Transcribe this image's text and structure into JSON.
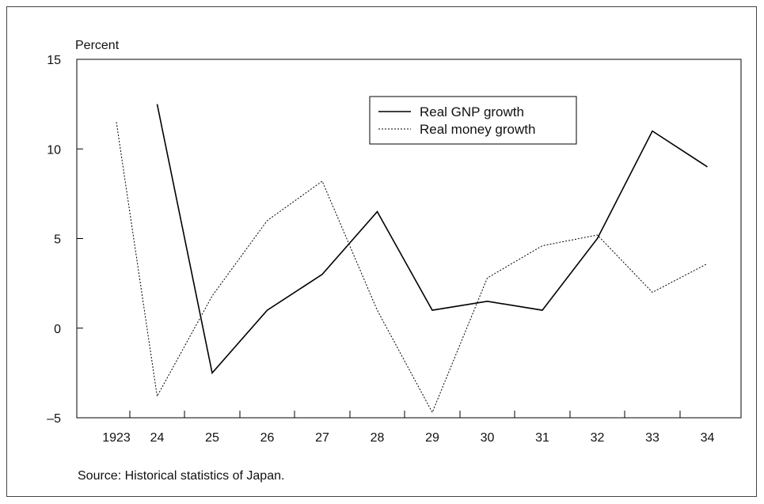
{
  "chart_data": {
    "type": "line",
    "title": "",
    "xlabel": "",
    "ylabel": "Percent",
    "categories": [
      "1923",
      "24",
      "25",
      "26",
      "27",
      "28",
      "29",
      "30",
      "31",
      "32",
      "33",
      "34"
    ],
    "ylim": [
      -5,
      15
    ],
    "yticks": [
      -5,
      0,
      5,
      10,
      15
    ],
    "grid": false,
    "legend_position": "top-right",
    "series": [
      {
        "name": "Real GNP growth",
        "style": "solid",
        "color": "#000000",
        "values": [
          null,
          12.5,
          -2.5,
          1.0,
          3.0,
          6.5,
          1.0,
          1.5,
          1.0,
          5.0,
          11.0,
          9.0
        ]
      },
      {
        "name": "Real money growth",
        "style": "dotted",
        "color": "#000000",
        "values": [
          11.5,
          -3.8,
          1.8,
          6.0,
          8.2,
          1.0,
          -4.7,
          2.8,
          4.6,
          5.2,
          2.0,
          3.6
        ]
      }
    ],
    "source": "Source: Historical statistics of Japan."
  }
}
